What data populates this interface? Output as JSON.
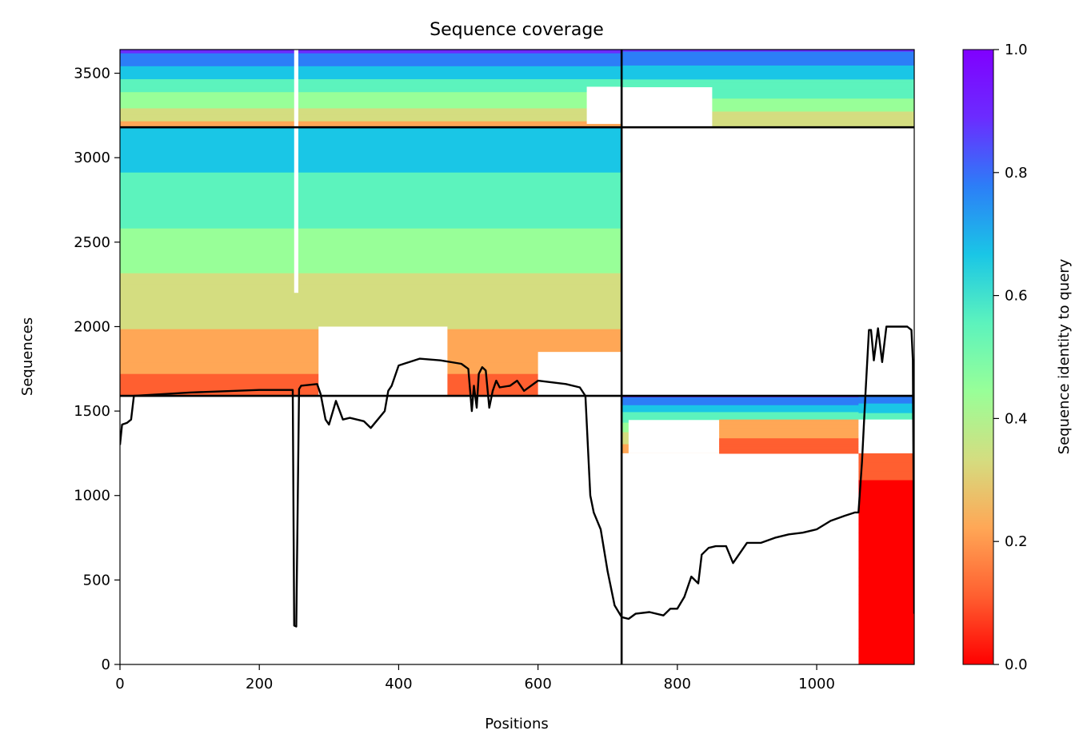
{
  "chart_data": {
    "type": "heatmap",
    "title": "Sequence coverage",
    "xlabel": "Positions",
    "ylabel": "Sequences",
    "xlim": [
      0,
      1140
    ],
    "ylim": [
      0,
      3640
    ],
    "xticks": [
      0,
      200,
      400,
      600,
      800,
      1000
    ],
    "yticks": [
      0,
      500,
      1000,
      1500,
      2000,
      2500,
      3000,
      3500
    ],
    "grid": false,
    "colorbar": {
      "label": "Sequence identity to query",
      "range": [
        0,
        1
      ],
      "ticks": [
        "0.0",
        "0.2",
        "0.4",
        "0.6",
        "0.8",
        "1.0"
      ],
      "colormap": [
        "#ff0000",
        "#ff5f30",
        "#ffa756",
        "#d4dd80",
        "#98ff98",
        "#5cf3bd",
        "#1ac6e6",
        "#2c7ef7",
        "#6b2cff",
        "#8000ff"
      ]
    },
    "chain_breaks": {
      "positions": [
        720
      ],
      "sequences": [
        1590,
        3180
      ]
    },
    "coverage_line": {
      "color": "#000000",
      "x": [
        0,
        3,
        10,
        16,
        20,
        100,
        200,
        248,
        250,
        253,
        257,
        260,
        283,
        288,
        295,
        300,
        310,
        320,
        330,
        350,
        360,
        370,
        380,
        385,
        390,
        400,
        430,
        460,
        490,
        500,
        505,
        508,
        512,
        515,
        520,
        525,
        530,
        535,
        540,
        545,
        560,
        570,
        580,
        600,
        640,
        660,
        668,
        675,
        680,
        690,
        700,
        710,
        720,
        730,
        740,
        760,
        780,
        790,
        800,
        810,
        820,
        830,
        835,
        845,
        855,
        870,
        880,
        900,
        920,
        940,
        960,
        980,
        1000,
        1020,
        1040,
        1055,
        1060,
        1065,
        1070,
        1075,
        1078,
        1082,
        1088,
        1094,
        1100,
        1130,
        1136,
        1138,
        1140
      ],
      "y": [
        1300,
        1420,
        1430,
        1450,
        1590,
        1610,
        1625,
        1625,
        230,
        225,
        1630,
        1650,
        1660,
        1600,
        1450,
        1420,
        1560,
        1450,
        1460,
        1440,
        1400,
        1450,
        1500,
        1620,
        1650,
        1770,
        1810,
        1800,
        1780,
        1750,
        1500,
        1650,
        1520,
        1720,
        1760,
        1740,
        1520,
        1620,
        1680,
        1640,
        1650,
        1680,
        1620,
        1680,
        1660,
        1640,
        1590,
        1000,
        900,
        800,
        550,
        350,
        280,
        270,
        300,
        310,
        290,
        330,
        330,
        400,
        520,
        480,
        650,
        690,
        700,
        700,
        600,
        720,
        720,
        750,
        770,
        780,
        800,
        850,
        880,
        900,
        900,
        1200,
        1600,
        1980,
        1980,
        1800,
        1990,
        1790,
        2000,
        2000,
        1980,
        1800,
        300
      ]
    }
  }
}
